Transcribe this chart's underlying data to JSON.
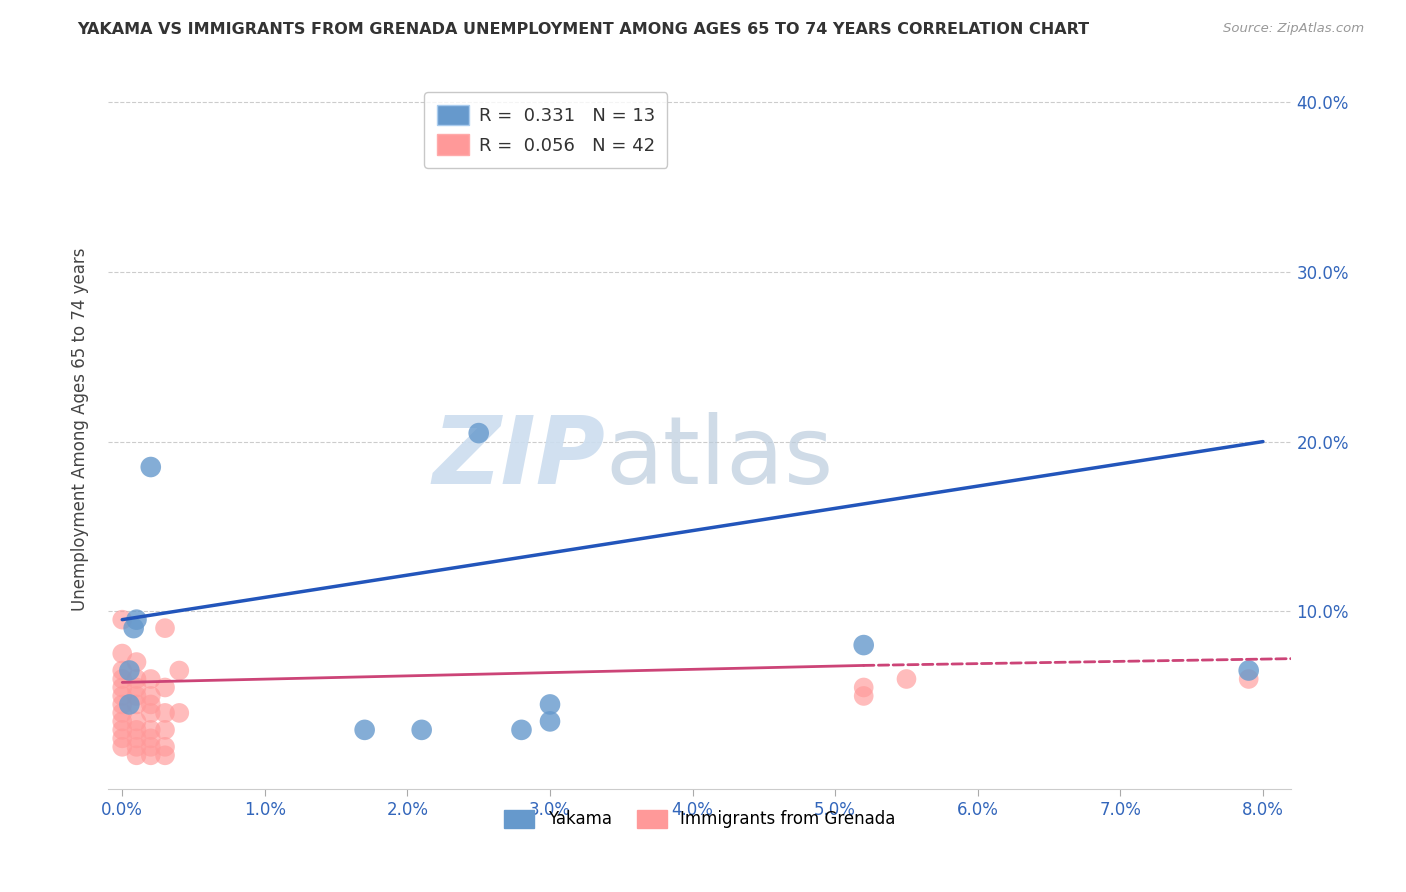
{
  "title": "YAKAMA VS IMMIGRANTS FROM GRENADA UNEMPLOYMENT AMONG AGES 65 TO 74 YEARS CORRELATION CHART",
  "source": "Source: ZipAtlas.com",
  "ylabel": "Unemployment Among Ages 65 to 74 years",
  "xlim": [
    -0.001,
    0.082
  ],
  "ylim": [
    -0.005,
    0.42
  ],
  "xticks": [
    0.0,
    0.01,
    0.02,
    0.03,
    0.04,
    0.05,
    0.06,
    0.07,
    0.08
  ],
  "yticks": [
    0.1,
    0.2,
    0.3,
    0.4
  ],
  "ytick_labels": [
    "10.0%",
    "20.0%",
    "30.0%",
    "40.0%"
  ],
  "xtick_labels": [
    "0.0%",
    "1.0%",
    "2.0%",
    "3.0%",
    "4.0%",
    "5.0%",
    "6.0%",
    "7.0%",
    "8.0%"
  ],
  "yakama_R": 0.331,
  "yakama_N": 13,
  "grenada_R": 0.056,
  "grenada_N": 42,
  "yakama_color": "#6699CC",
  "grenada_color": "#FF9999",
  "trendline_yakama_color": "#2255BB",
  "trendline_grenada_color": "#CC4477",
  "background_color": "#FFFFFF",
  "grid_color": "#CCCCCC",
  "watermark_zip": "ZIP",
  "watermark_atlas": "atlas",
  "yakama_points": [
    [
      0.0005,
      0.065
    ],
    [
      0.0005,
      0.045
    ],
    [
      0.0008,
      0.09
    ],
    [
      0.001,
      0.095
    ],
    [
      0.002,
      0.185
    ],
    [
      0.017,
      0.03
    ],
    [
      0.021,
      0.03
    ],
    [
      0.025,
      0.205
    ],
    [
      0.028,
      0.03
    ],
    [
      0.03,
      0.045
    ],
    [
      0.03,
      0.035
    ],
    [
      0.052,
      0.08
    ],
    [
      0.079,
      0.065
    ]
  ],
  "grenada_points": [
    [
      0.0,
      0.095
    ],
    [
      0.0,
      0.075
    ],
    [
      0.0,
      0.065
    ],
    [
      0.0,
      0.06
    ],
    [
      0.0,
      0.055
    ],
    [
      0.0,
      0.05
    ],
    [
      0.0,
      0.045
    ],
    [
      0.0,
      0.04
    ],
    [
      0.0,
      0.035
    ],
    [
      0.0,
      0.03
    ],
    [
      0.0,
      0.025
    ],
    [
      0.0,
      0.02
    ],
    [
      0.001,
      0.07
    ],
    [
      0.001,
      0.06
    ],
    [
      0.001,
      0.055
    ],
    [
      0.001,
      0.05
    ],
    [
      0.001,
      0.045
    ],
    [
      0.001,
      0.035
    ],
    [
      0.001,
      0.03
    ],
    [
      0.001,
      0.025
    ],
    [
      0.001,
      0.02
    ],
    [
      0.001,
      0.015
    ],
    [
      0.002,
      0.06
    ],
    [
      0.002,
      0.05
    ],
    [
      0.002,
      0.045
    ],
    [
      0.002,
      0.04
    ],
    [
      0.002,
      0.03
    ],
    [
      0.002,
      0.025
    ],
    [
      0.002,
      0.02
    ],
    [
      0.002,
      0.015
    ],
    [
      0.003,
      0.09
    ],
    [
      0.003,
      0.055
    ],
    [
      0.003,
      0.04
    ],
    [
      0.003,
      0.03
    ],
    [
      0.003,
      0.02
    ],
    [
      0.003,
      0.015
    ],
    [
      0.004,
      0.065
    ],
    [
      0.004,
      0.04
    ],
    [
      0.052,
      0.055
    ],
    [
      0.052,
      0.05
    ],
    [
      0.055,
      0.06
    ],
    [
      0.079,
      0.06
    ]
  ],
  "yakama_trendline_solid": [
    [
      0.0,
      0.095
    ],
    [
      0.08,
      0.2
    ]
  ],
  "grenada_trendline_solid": [
    [
      0.0,
      0.058
    ],
    [
      0.052,
      0.068
    ]
  ],
  "grenada_trendline_dash": [
    [
      0.052,
      0.068
    ],
    [
      0.082,
      0.072
    ]
  ]
}
